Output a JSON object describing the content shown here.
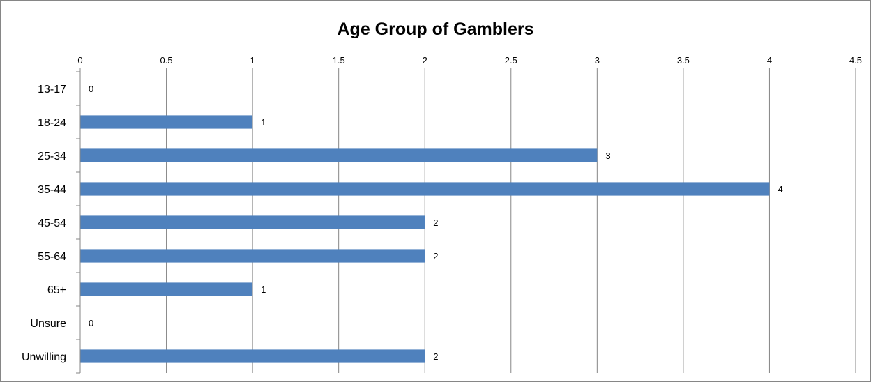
{
  "chart_data": {
    "type": "bar",
    "orientation": "horizontal",
    "title": "Age Group of Gamblers",
    "categories": [
      "13-17",
      "18-24",
      "25-34",
      "35-44",
      "45-54",
      "55-64",
      "65+",
      "Unsure",
      "Unwilling"
    ],
    "values": [
      0,
      1,
      3,
      4,
      2,
      2,
      1,
      0,
      2
    ],
    "data_labels": [
      "0",
      "1",
      "3",
      "4",
      "2",
      "2",
      "1",
      "0",
      "2"
    ],
    "xlim": [
      0,
      4.5
    ],
    "x_ticks": [
      "0",
      "0.5",
      "1",
      "1.5",
      "2",
      "2.5",
      "3",
      "3.5",
      "4",
      "4.5"
    ],
    "x_axis_position": "top",
    "gridlines": "vertical",
    "legend": "none",
    "bar_color": "#4f81bd",
    "gridline_color": "#868686"
  }
}
